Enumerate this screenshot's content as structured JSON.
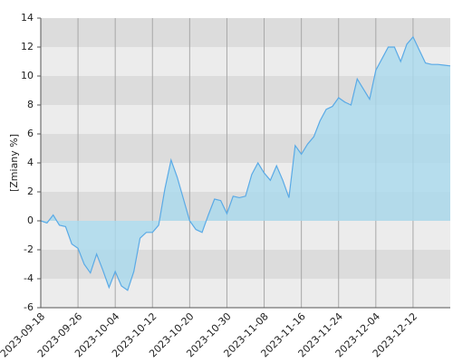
{
  "chart_data": {
    "type": "area",
    "y_label": "[Zmiany %]",
    "categories": [
      "2023-09-18",
      null,
      null,
      null,
      null,
      null,
      "2023-09-26",
      null,
      null,
      null,
      null,
      null,
      "2023-10-04",
      null,
      null,
      null,
      null,
      null,
      "2023-10-12",
      null,
      null,
      null,
      null,
      null,
      "2023-10-20",
      null,
      null,
      null,
      null,
      null,
      "2023-10-30",
      null,
      null,
      null,
      null,
      null,
      "2023-11-08",
      null,
      null,
      null,
      null,
      null,
      "2023-11-16",
      null,
      null,
      null,
      null,
      null,
      "2023-11-24",
      null,
      null,
      null,
      null,
      null,
      "2023-12-04",
      null,
      null,
      null,
      null,
      null,
      "2023-12-12",
      null,
      null,
      null,
      null,
      null,
      null
    ],
    "series": [
      {
        "color": "#5aaae6",
        "fill": "#a9d9ee",
        "values": [
          0.0,
          -0.15,
          0.4,
          -0.3,
          -0.4,
          -1.6,
          -1.9,
          -3.0,
          -3.6,
          -2.3,
          -3.4,
          -4.6,
          -3.5,
          -4.5,
          -4.8,
          -3.5,
          -1.2,
          -0.8,
          -0.8,
          -0.3,
          2.2,
          4.2,
          3.0,
          1.5,
          0.0,
          -0.6,
          -0.8,
          0.4,
          1.5,
          1.4,
          0.5,
          1.7,
          1.6,
          1.7,
          3.2,
          4.0,
          3.3,
          2.8,
          3.8,
          2.8,
          1.6,
          5.2,
          4.6,
          5.3,
          5.8,
          6.9,
          7.7,
          7.9,
          8.5,
          8.2,
          8.0,
          9.8,
          9.1,
          8.4,
          10.4,
          11.2,
          12.0,
          12.0,
          11.0,
          12.2,
          12.7,
          11.8,
          10.9,
          10.8,
          10.8,
          10.75,
          10.7
        ]
      }
    ],
    "ylim": [
      -6,
      14
    ],
    "yticks": [
      -6,
      -4,
      -2,
      0,
      2,
      4,
      6,
      8,
      10,
      12,
      14
    ],
    "grid": true
  }
}
